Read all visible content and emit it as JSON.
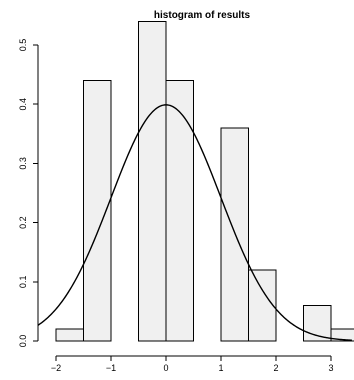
{
  "chart_data": {
    "type": "bar",
    "subtype": "histogram-with-density-curve",
    "title": "histogram of results",
    "xlabel": "",
    "ylabel": "",
    "xlim": [
      -2,
      3.3
    ],
    "ylim": [
      0,
      0.55
    ],
    "x_ticks": [
      {
        "value": -2,
        "label": "−2"
      },
      {
        "value": -1,
        "label": "−1"
      },
      {
        "value": 0,
        "label": "0"
      },
      {
        "value": 1,
        "label": "1"
      },
      {
        "value": 2,
        "label": "2"
      },
      {
        "value": 3,
        "label": "3"
      }
    ],
    "y_ticks": [
      {
        "value": 0,
        "label": "0.0"
      },
      {
        "value": 0.1,
        "label": "0.1"
      },
      {
        "value": 0.2,
        "label": "0.2"
      },
      {
        "value": 0.3,
        "label": "0.3"
      },
      {
        "value": 0.4,
        "label": "0.4"
      },
      {
        "value": 0.5,
        "label": "0.5"
      }
    ],
    "bins": [
      {
        "x0": -2.0,
        "x1": -1.5,
        "density": 0.02
      },
      {
        "x0": -1.5,
        "x1": -1.0,
        "density": 0.44
      },
      {
        "x0": -1.0,
        "x1": -0.5,
        "density": 0.0
      },
      {
        "x0": -0.5,
        "x1": 0.0,
        "density": 0.54
      },
      {
        "x0": 0.0,
        "x1": 0.5,
        "density": 0.44
      },
      {
        "x0": 0.5,
        "x1": 1.0,
        "density": 0.0
      },
      {
        "x0": 1.0,
        "x1": 1.5,
        "density": 0.36
      },
      {
        "x0": 1.5,
        "x1": 2.0,
        "density": 0.12
      },
      {
        "x0": 2.0,
        "x1": 2.5,
        "density": 0.0
      },
      {
        "x0": 2.5,
        "x1": 3.0,
        "density": 0.06
      },
      {
        "x0": 3.0,
        "x1": 3.5,
        "density": 0.02
      }
    ],
    "curve": {
      "type": "normal-density",
      "mean": 0,
      "sd": 1
    },
    "bar_fill": "#f0f0f0",
    "bar_stroke": "#000000",
    "curve_color": "#000000",
    "grid": false,
    "legend": "none"
  }
}
